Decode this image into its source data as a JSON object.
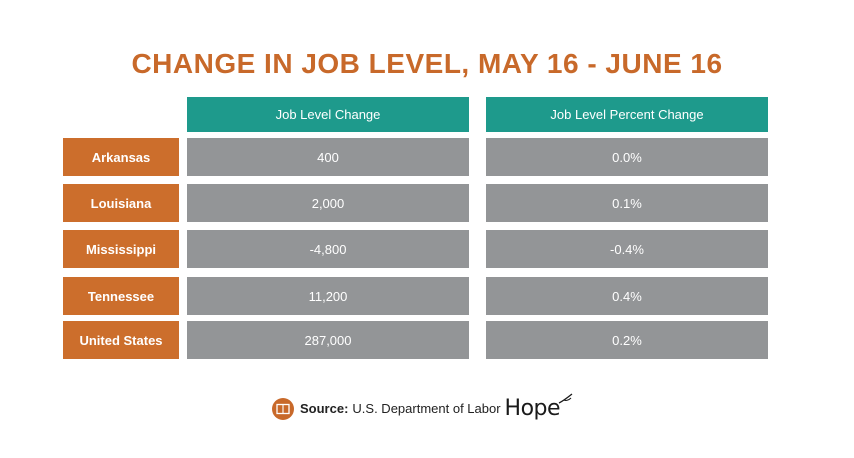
{
  "chart_data": {
    "type": "table",
    "title": "CHANGE IN JOB LEVEL, MAY 16 - JUNE 16",
    "columns": [
      "Job Level Change",
      "Job Level Percent Change"
    ],
    "rows": [
      {
        "label": "Arkansas",
        "change": "400",
        "percent": "0.0%"
      },
      {
        "label": "Louisiana",
        "change": "2,000",
        "percent": "0.1%"
      },
      {
        "label": "Mississippi",
        "change": "-4,800",
        "percent": "-0.4%"
      },
      {
        "label": "Tennessee",
        "change": "11,200",
        "percent": "0.4%"
      },
      {
        "label": "United States",
        "change": "287,000",
        "percent": "0.2%"
      }
    ]
  },
  "footer": {
    "source_label": "Source:",
    "source_text": "U.S. Department of Labor",
    "logo_text": "Hope"
  },
  "colors": {
    "title": "#c8692a",
    "header": "#1e9a8c",
    "row_label": "#cc6e2c",
    "cell": "#939597"
  },
  "icons": {
    "source": "book-icon"
  }
}
